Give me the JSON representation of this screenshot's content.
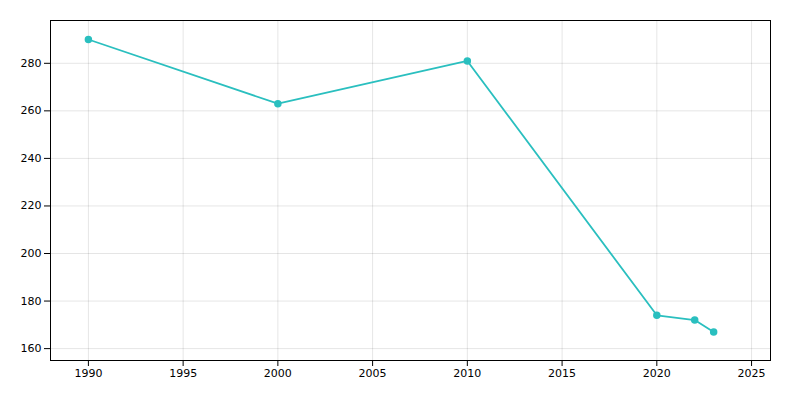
{
  "chart_data": {
    "type": "line",
    "x": [
      1990,
      2000,
      2010,
      2020,
      2022,
      2023
    ],
    "values": [
      290,
      263,
      281,
      174,
      172,
      167
    ],
    "color": "#2abfbf",
    "marker": "circle",
    "xlim": [
      1988,
      2026
    ],
    "xticks": [
      1990,
      1995,
      2000,
      2005,
      2010,
      2015,
      2020,
      2025
    ],
    "ylim": [
      155,
      298
    ],
    "yticks": [
      160,
      180,
      200,
      220,
      240,
      260,
      280
    ],
    "grid": true
  }
}
